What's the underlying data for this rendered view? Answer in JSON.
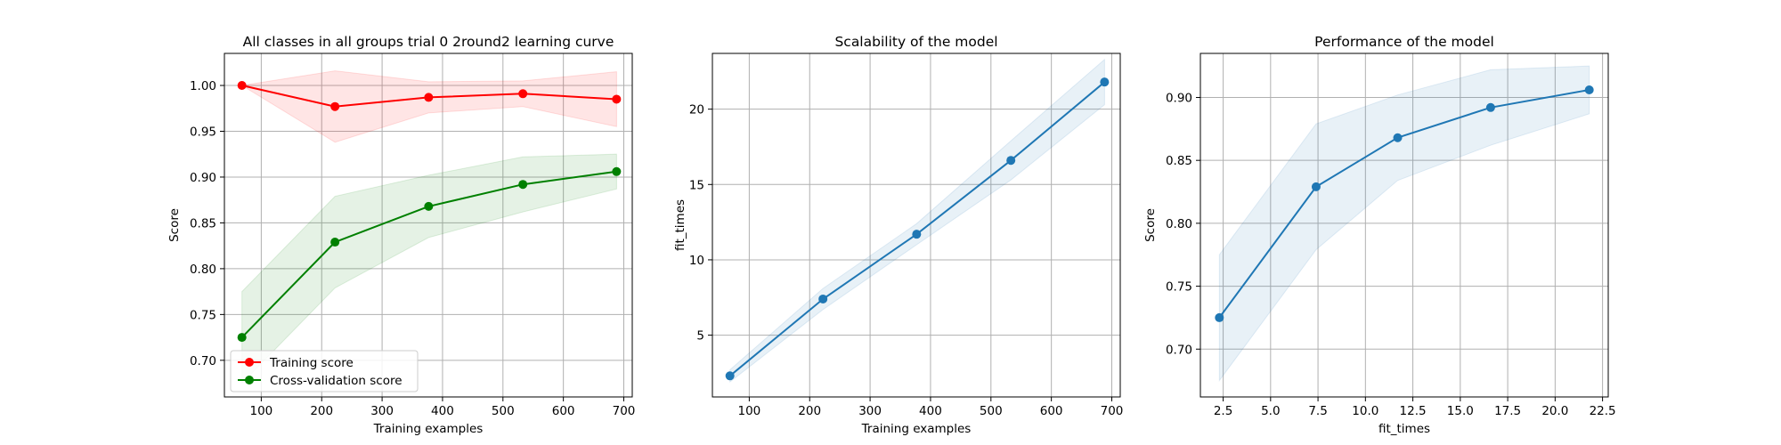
{
  "chart_data": [
    {
      "type": "line",
      "title": "All classes in all groups trial 0 2round2 learning curve",
      "xlabel": "Training examples",
      "ylabel": "Score",
      "xlim": [
        39,
        714
      ],
      "ylim": [
        0.66,
        1.035
      ],
      "xticks": [
        100,
        200,
        300,
        400,
        500,
        600,
        700
      ],
      "yticks": [
        0.7,
        0.75,
        0.8,
        0.85,
        0.9,
        0.95,
        1.0
      ],
      "xtick_labels": [
        "100",
        "200",
        "300",
        "400",
        "500",
        "600",
        "700"
      ],
      "ytick_labels": [
        "0.70",
        "0.75",
        "0.80",
        "0.85",
        "0.90",
        "0.95",
        "1.00"
      ],
      "grid": true,
      "legend_position": "lower-left",
      "series": [
        {
          "name": "Training score",
          "color": "#ff0000",
          "band_color": "#ff0000",
          "x": [
            68,
            222,
            377,
            533,
            688
          ],
          "y": [
            1.0,
            0.977,
            0.987,
            0.991,
            0.985
          ],
          "y_upper": [
            1.0,
            1.016,
            1.004,
            1.005,
            1.015
          ],
          "y_lower": [
            1.0,
            0.938,
            0.97,
            0.977,
            0.955
          ]
        },
        {
          "name": "Cross-validation score",
          "color": "#008000",
          "band_color": "#008000",
          "x": [
            68,
            222,
            377,
            533,
            688
          ],
          "y": [
            0.725,
            0.829,
            0.868,
            0.892,
            0.906
          ],
          "y_upper": [
            0.775,
            0.879,
            0.902,
            0.922,
            0.925
          ],
          "y_lower": [
            0.675,
            0.779,
            0.834,
            0.862,
            0.887
          ]
        }
      ]
    },
    {
      "type": "line",
      "title": "Scalability of the model",
      "xlabel": "Training examples",
      "ylabel": "fit_times",
      "xlim": [
        39,
        714
      ],
      "ylim": [
        0.9,
        23.7
      ],
      "xticks": [
        100,
        200,
        300,
        400,
        500,
        600,
        700
      ],
      "yticks": [
        5,
        10,
        15,
        20
      ],
      "xtick_labels": [
        "100",
        "200",
        "300",
        "400",
        "500",
        "600",
        "700"
      ],
      "ytick_labels": [
        "5",
        "10",
        "15",
        "20"
      ],
      "grid": true,
      "series": [
        {
          "color": "#1f77b4",
          "band_color": "#1f77b4",
          "x": [
            68,
            222,
            377,
            533,
            688
          ],
          "y": [
            2.3,
            7.4,
            11.7,
            16.6,
            21.8
          ],
          "y_upper": [
            2.7,
            8.1,
            12.4,
            17.9,
            23.3
          ],
          "y_lower": [
            1.9,
            6.7,
            11.0,
            15.3,
            20.3
          ]
        }
      ]
    },
    {
      "type": "line",
      "title": "Performance of the model",
      "xlabel": "fit_times",
      "ylabel": "Score",
      "xlim": [
        1.3,
        22.8
      ],
      "ylim": [
        0.662,
        0.935
      ],
      "xticks": [
        2.5,
        5.0,
        7.5,
        10.0,
        12.5,
        15.0,
        17.5,
        20.0,
        22.5
      ],
      "yticks": [
        0.7,
        0.75,
        0.8,
        0.85,
        0.9
      ],
      "xtick_labels": [
        "2.5",
        "5.0",
        "7.5",
        "10.0",
        "12.5",
        "15.0",
        "17.5",
        "20.0",
        "22.5"
      ],
      "ytick_labels": [
        "0.70",
        "0.75",
        "0.80",
        "0.85",
        "0.90"
      ],
      "grid": true,
      "series": [
        {
          "color": "#1f77b4",
          "band_color": "#1f77b4",
          "x": [
            2.3,
            7.4,
            11.7,
            16.6,
            21.8
          ],
          "y": [
            0.725,
            0.829,
            0.868,
            0.892,
            0.906
          ],
          "y_upper": [
            0.775,
            0.879,
            0.902,
            0.922,
            0.925
          ],
          "y_lower": [
            0.675,
            0.779,
            0.834,
            0.862,
            0.887
          ]
        }
      ]
    }
  ]
}
